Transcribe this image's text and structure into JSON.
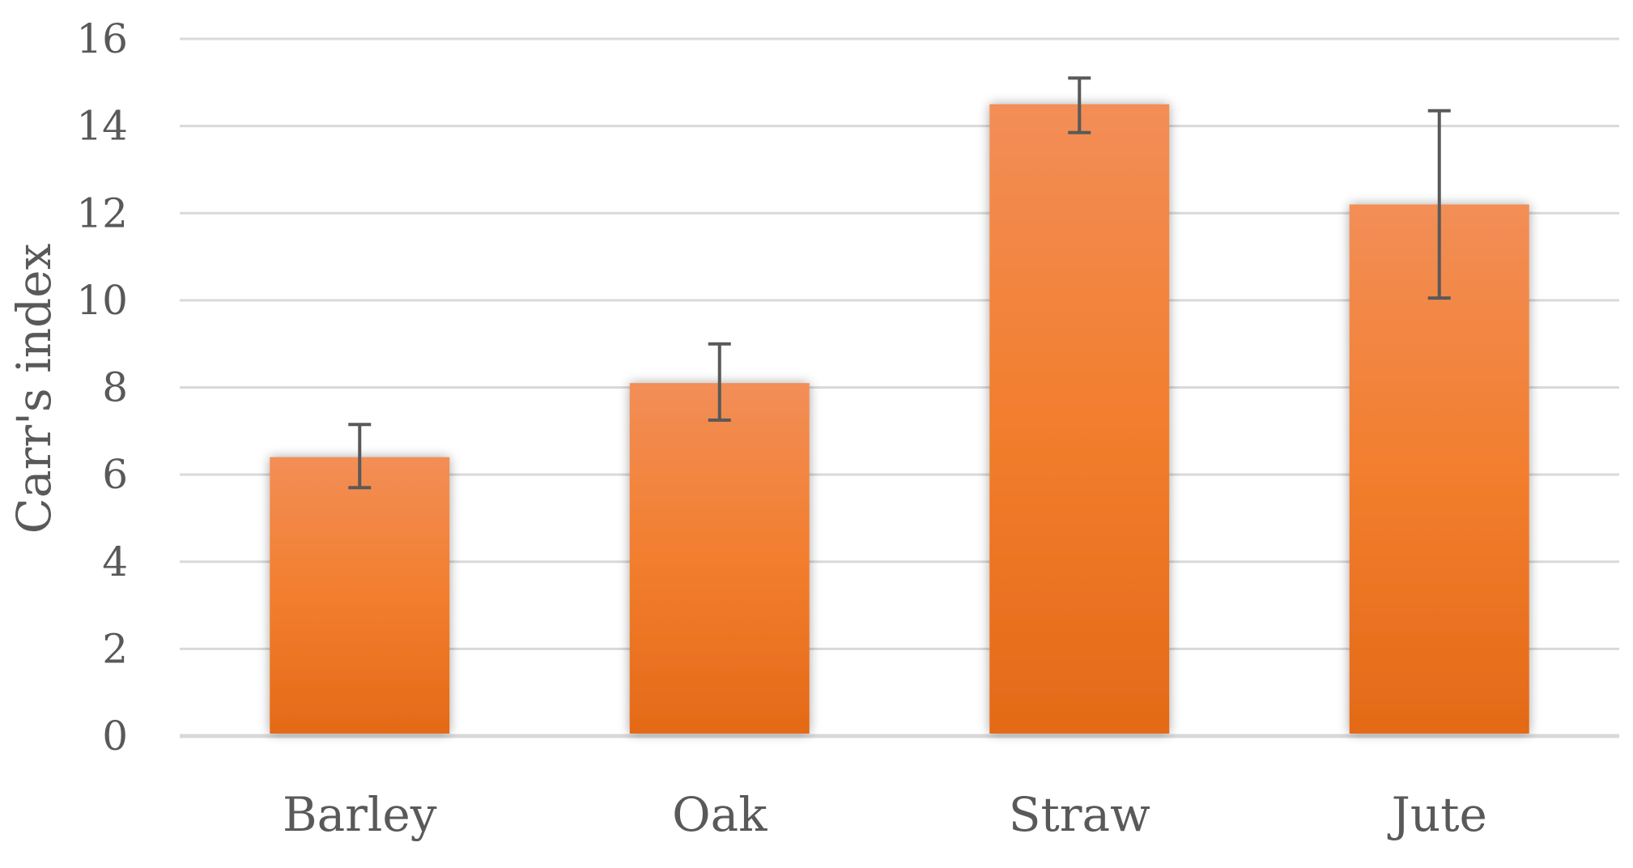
{
  "chart_data": {
    "type": "bar",
    "title": "",
    "xlabel": "",
    "ylabel": "Carr's index",
    "categories": [
      "Barley",
      "Oak",
      "Straw",
      "Jute"
    ],
    "series": [
      {
        "values": [
          6.4,
          8.1,
          14.5,
          12.2
        ],
        "error_low": [
          5.7,
          7.25,
          13.85,
          10.05
        ],
        "error_high": [
          7.15,
          9.0,
          15.1,
          14.35
        ]
      }
    ],
    "ylim": [
      0,
      16
    ],
    "yticks": [
      "0",
      "2",
      "4",
      "6",
      "8",
      "10",
      "12",
      "14",
      "16"
    ],
    "grid": true,
    "legend": "none",
    "colors": {
      "bar_top": "#F28E57",
      "bar_mid": "#F27E2E",
      "bar_bottom": "#E46A17",
      "grid": "#D9D9D9",
      "error_bar": "#595959",
      "text": "#595959"
    }
  }
}
